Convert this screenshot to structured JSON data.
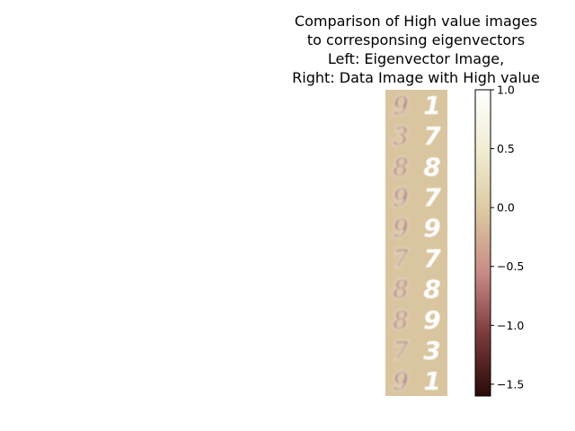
{
  "chart_data": {
    "type": "heatmap",
    "title_lines": [
      "Comparison of High value images",
      " to corresponsing eigenvectors",
      "Left: Eigenvector Image,",
      "Right: Data Image with High value"
    ],
    "panel_labels": {
      "left": "Eigenvector Image",
      "right": "Data Image with High value"
    },
    "rows": [
      {
        "eigen_digit": "9",
        "data_digit": "1"
      },
      {
        "eigen_digit": "3",
        "data_digit": "7"
      },
      {
        "eigen_digit": "8",
        "data_digit": "8"
      },
      {
        "eigen_digit": "9",
        "data_digit": "7"
      },
      {
        "eigen_digit": "9",
        "data_digit": "9"
      },
      {
        "eigen_digit": "7",
        "data_digit": "7"
      },
      {
        "eigen_digit": "8",
        "data_digit": "8"
      },
      {
        "eigen_digit": "8",
        "data_digit": "9"
      },
      {
        "eigen_digit": "7",
        "data_digit": "3"
      },
      {
        "eigen_digit": "9",
        "data_digit": "1"
      }
    ],
    "colorbar": {
      "range": [
        -1.6,
        1.0
      ],
      "ticks": [
        1.0,
        0.5,
        0.0,
        -0.5,
        -1.0,
        -1.5
      ],
      "tick_labels": [
        "1.0",
        "0.5",
        "0.0",
        "−0.5",
        "−1.0",
        "−1.5"
      ],
      "colormap": [
        "#2a0a0a",
        "#7a3a3a",
        "#c88a86",
        "#dcc8a0",
        "#f0ecd2",
        "#ffffff"
      ]
    },
    "background_color": "#d9c59f",
    "grid": false
  }
}
